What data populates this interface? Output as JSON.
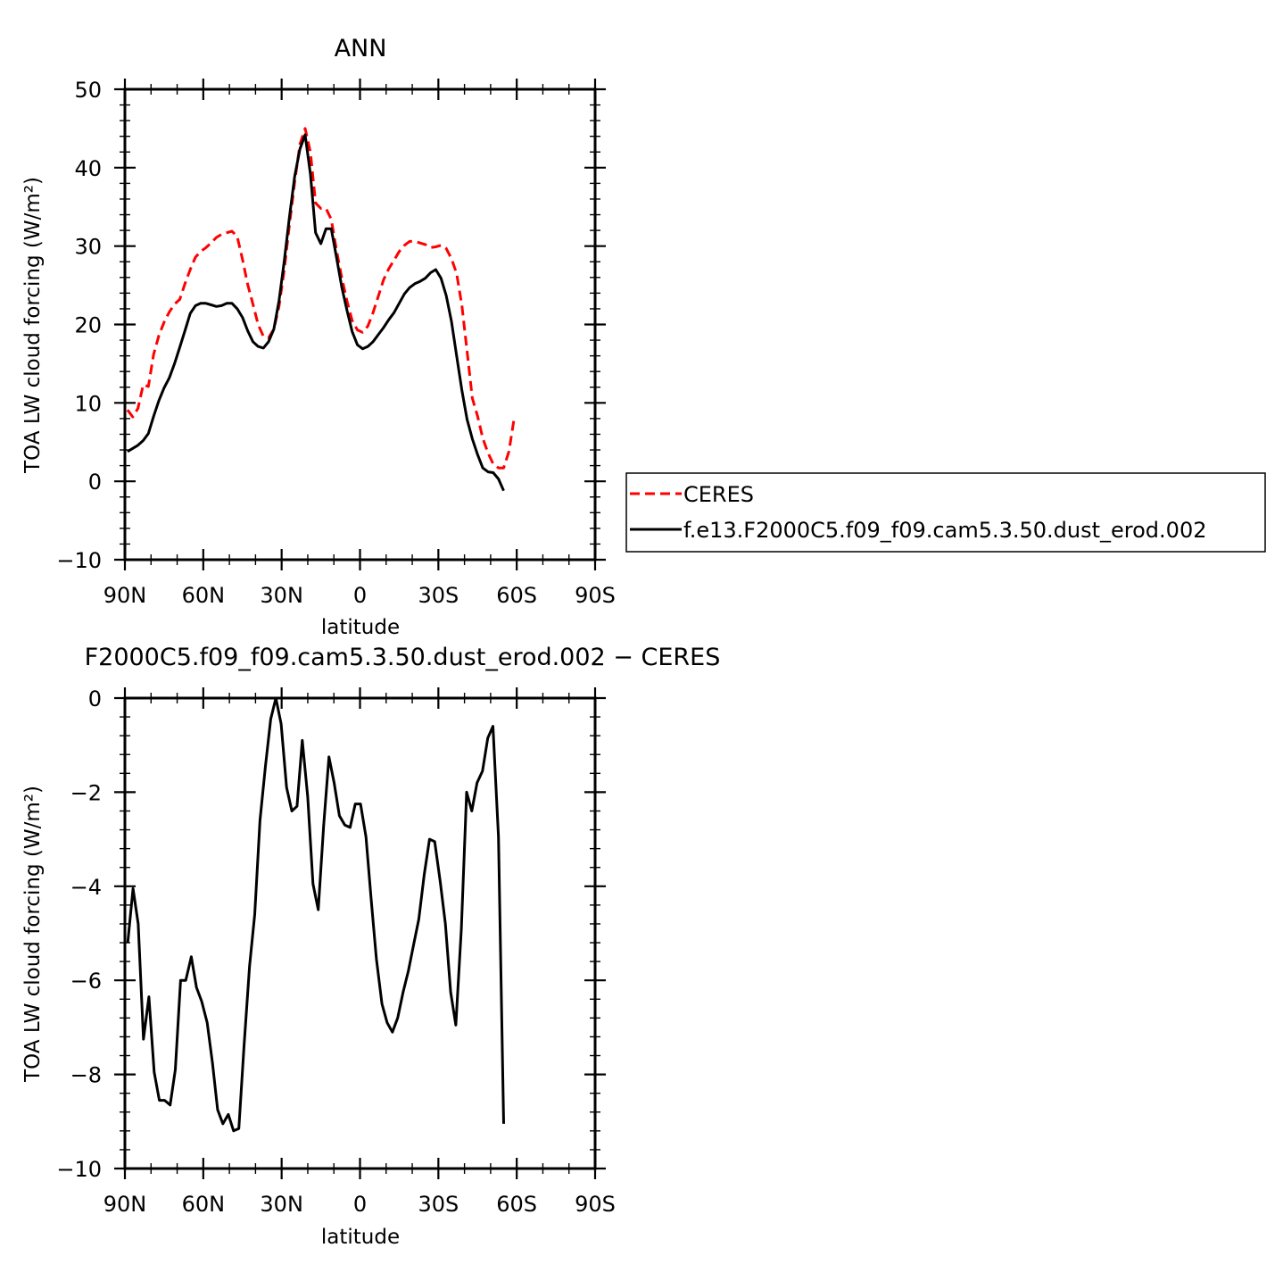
{
  "chart_data": [
    {
      "type": "line",
      "title": "ANN",
      "xlabel": "latitude",
      "ylabel": "TOA LW cloud forcing (W/m²)",
      "xlim": [
        90,
        -90
      ],
      "ylim": [
        -10,
        50
      ],
      "x_ticks": [
        {
          "value": 90,
          "label": "90N"
        },
        {
          "value": 60,
          "label": "60N"
        },
        {
          "value": 30,
          "label": "30N"
        },
        {
          "value": 0,
          "label": "0"
        },
        {
          "value": -30,
          "label": "30S"
        },
        {
          "value": -60,
          "label": "60S"
        },
        {
          "value": -90,
          "label": "90S"
        }
      ],
      "y_ticks": [
        {
          "value": 50,
          "label": "50"
        },
        {
          "value": 40,
          "label": "40"
        },
        {
          "value": 30,
          "label": "30"
        },
        {
          "value": 20,
          "label": "20"
        },
        {
          "value": 10,
          "label": "10"
        },
        {
          "value": 0,
          "label": "0"
        },
        {
          "value": -10,
          "label": "−10"
        }
      ],
      "legend_position": "right, outside plot",
      "series": [
        {
          "name": "CERES",
          "color": "#ff0000",
          "style": "dashed",
          "points": [
            [
              89,
              9.1
            ],
            [
              87,
              8.2
            ],
            [
              85,
              9.3
            ],
            [
              83,
              12.3
            ],
            [
              81,
              12.1
            ],
            [
              79,
              16.2
            ],
            [
              77,
              18.6
            ],
            [
              75,
              20.3
            ],
            [
              73,
              21.6
            ],
            [
              71,
              22.6
            ],
            [
              69,
              23.2
            ],
            [
              67,
              25.2
            ],
            [
              65,
              27.0
            ],
            [
              63,
              28.6
            ],
            [
              61,
              29.3
            ],
            [
              59,
              29.8
            ],
            [
              57,
              30.4
            ],
            [
              55,
              31.1
            ],
            [
              53,
              31.5
            ],
            [
              51,
              31.7
            ],
            [
              49,
              31.9
            ],
            [
              47,
              31.2
            ],
            [
              45,
              28.3
            ],
            [
              43,
              25.1
            ],
            [
              41,
              22.6
            ],
            [
              39,
              20.0
            ],
            [
              37,
              18.5
            ],
            [
              35,
              18.3
            ],
            [
              33,
              19.4
            ],
            [
              31,
              22.3
            ],
            [
              29,
              27.0
            ],
            [
              27,
              32.7
            ],
            [
              25,
              38.2
            ],
            [
              23,
              43.0
            ],
            [
              21,
              45.0
            ],
            [
              19,
              42.0
            ],
            [
              17,
              35.5
            ],
            [
              15,
              34.8
            ],
            [
              13,
              34.8
            ],
            [
              11,
              33.4
            ],
            [
              9,
              29.5
            ],
            [
              7,
              26.0
            ],
            [
              5,
              23.0
            ],
            [
              3,
              20.5
            ],
            [
              1,
              19.3
            ],
            [
              -1,
              19.0
            ],
            [
              -3,
              19.8
            ],
            [
              -5,
              21.5
            ],
            [
              -7,
              23.6
            ],
            [
              -9,
              25.7
            ],
            [
              -11,
              27.1
            ],
            [
              -13,
              28.2
            ],
            [
              -15,
              29.3
            ],
            [
              -17,
              30.1
            ],
            [
              -19,
              30.6
            ],
            [
              -21,
              30.6
            ],
            [
              -23,
              30.4
            ],
            [
              -25,
              30.2
            ],
            [
              -27,
              29.8
            ],
            [
              -29,
              29.9
            ],
            [
              -31,
              30.1
            ],
            [
              -33,
              29.7
            ],
            [
              -35,
              28.4
            ],
            [
              -37,
              26.5
            ],
            [
              -39,
              22.4
            ],
            [
              -41,
              16.6
            ],
            [
              -43,
              10.6
            ],
            [
              -45,
              8.3
            ],
            [
              -47,
              5.5
            ],
            [
              -49,
              3.6
            ],
            [
              -51,
              2.2
            ],
            [
              -53,
              1.7
            ],
            [
              -55,
              1.7
            ],
            [
              -57,
              3.8
            ],
            [
              -59,
              8.0
            ]
          ]
        },
        {
          "name": "f.e13.F2000C5.f09_f09.cam5.3.50.dust_erod.002",
          "color": "#000000",
          "style": "solid",
          "points": [
            [
              89,
              3.8
            ],
            [
              87,
              4.2
            ],
            [
              85,
              4.6
            ],
            [
              83,
              5.2
            ],
            [
              81,
              6.1
            ],
            [
              79,
              8.3
            ],
            [
              77,
              10.3
            ],
            [
              75,
              11.9
            ],
            [
              73,
              13.2
            ],
            [
              71,
              15.0
            ],
            [
              69,
              17.1
            ],
            [
              67,
              19.2
            ],
            [
              65,
              21.4
            ],
            [
              63,
              22.4
            ],
            [
              61,
              22.7
            ],
            [
              59,
              22.7
            ],
            [
              57,
              22.5
            ],
            [
              55,
              22.3
            ],
            [
              53,
              22.4
            ],
            [
              51,
              22.7
            ],
            [
              49,
              22.7
            ],
            [
              47,
              22.0
            ],
            [
              45,
              20.9
            ],
            [
              43,
              19.2
            ],
            [
              41,
              17.8
            ],
            [
              39,
              17.2
            ],
            [
              37,
              17.0
            ],
            [
              35,
              17.8
            ],
            [
              33,
              19.4
            ],
            [
              31,
              23.0
            ],
            [
              29,
              28.1
            ],
            [
              27,
              33.7
            ],
            [
              25,
              38.9
            ],
            [
              23,
              42.4
            ],
            [
              21,
              44.2
            ],
            [
              19,
              39.2
            ],
            [
              17,
              31.7
            ],
            [
              15,
              30.3
            ],
            [
              13,
              32.2
            ],
            [
              11,
              32.2
            ],
            [
              9,
              28.6
            ],
            [
              7,
              24.8
            ],
            [
              5,
              21.8
            ],
            [
              3,
              19.1
            ],
            [
              1,
              17.4
            ],
            [
              -1,
              16.9
            ],
            [
              -3,
              17.2
            ],
            [
              -5,
              17.8
            ],
            [
              -7,
              18.7
            ],
            [
              -9,
              19.6
            ],
            [
              -11,
              20.6
            ],
            [
              -13,
              21.5
            ],
            [
              -15,
              22.7
            ],
            [
              -17,
              23.9
            ],
            [
              -19,
              24.7
            ],
            [
              -21,
              25.2
            ],
            [
              -23,
              25.5
            ],
            [
              -25,
              25.9
            ],
            [
              -27,
              26.6
            ],
            [
              -29,
              27.0
            ],
            [
              -31,
              25.9
            ],
            [
              -33,
              23.7
            ],
            [
              -35,
              20.4
            ],
            [
              -37,
              16.0
            ],
            [
              -39,
              11.6
            ],
            [
              -41,
              7.9
            ],
            [
              -43,
              5.4
            ],
            [
              -45,
              3.4
            ],
            [
              -47,
              1.7
            ],
            [
              -49,
              1.2
            ],
            [
              -51,
              1.1
            ],
            [
              -53,
              0.3
            ],
            [
              -55,
              -1.2
            ]
          ]
        }
      ]
    },
    {
      "type": "line",
      "title": "F2000C5.f09_f09.cam5.3.50.dust_erod.002 − CERES",
      "xlabel": "latitude",
      "ylabel": "TOA LW cloud forcing (W/m²)",
      "xlim": [
        90,
        -90
      ],
      "ylim": [
        -10,
        0
      ],
      "x_ticks": [
        {
          "value": 90,
          "label": "90N"
        },
        {
          "value": 60,
          "label": "60N"
        },
        {
          "value": 30,
          "label": "30N"
        },
        {
          "value": 0,
          "label": "0"
        },
        {
          "value": -30,
          "label": "30S"
        },
        {
          "value": -60,
          "label": "60S"
        },
        {
          "value": -90,
          "label": "90S"
        }
      ],
      "y_ticks": [
        {
          "value": 0,
          "label": "0"
        },
        {
          "value": -2,
          "label": "−2"
        },
        {
          "value": -4,
          "label": "−4"
        },
        {
          "value": -6,
          "label": "−6"
        },
        {
          "value": -8,
          "label": "−8"
        },
        {
          "value": -10,
          "label": "−10"
        }
      ],
      "series": [
        {
          "color": "#000000",
          "style": "solid",
          "points": [
            [
              88.9,
              -5.2
            ],
            [
              86.9,
              -4.05
            ],
            [
              84.9,
              -4.8
            ],
            [
              82.9,
              -7.25
            ],
            [
              80.8,
              -6.35
            ],
            [
              78.8,
              -7.95
            ],
            [
              76.8,
              -8.55
            ],
            [
              74.8,
              -8.55
            ],
            [
              72.7,
              -8.65
            ],
            [
              70.7,
              -7.9
            ],
            [
              68.7,
              -6.0
            ],
            [
              66.7,
              -6.0
            ],
            [
              64.6,
              -5.5
            ],
            [
              62.6,
              -6.15
            ],
            [
              60.6,
              -6.45
            ],
            [
              58.5,
              -6.9
            ],
            [
              56.5,
              -7.75
            ],
            [
              54.5,
              -8.75
            ],
            [
              52.5,
              -9.05
            ],
            [
              50.4,
              -8.85
            ],
            [
              48.4,
              -9.2
            ],
            [
              46.4,
              -9.15
            ],
            [
              44.4,
              -7.4
            ],
            [
              42.3,
              -5.7
            ],
            [
              40.3,
              -4.6
            ],
            [
              38.3,
              -2.6
            ],
            [
              36.2,
              -1.45
            ],
            [
              34.2,
              -0.45
            ],
            [
              32.2,
              0.0
            ],
            [
              30.2,
              -0.55
            ],
            [
              28.1,
              -1.9
            ],
            [
              26.1,
              -2.4
            ],
            [
              24.1,
              -2.3
            ],
            [
              22.1,
              -0.9
            ],
            [
              20.0,
              -2.1
            ],
            [
              18.0,
              -3.95
            ],
            [
              16.0,
              -4.5
            ],
            [
              13.9,
              -2.7
            ],
            [
              11.9,
              -1.25
            ],
            [
              9.9,
              -1.8
            ],
            [
              7.9,
              -2.5
            ],
            [
              5.8,
              -2.7
            ],
            [
              3.8,
              -2.75
            ],
            [
              1.8,
              -2.25
            ],
            [
              -0.2,
              -2.25
            ],
            [
              -2.3,
              -2.95
            ],
            [
              -4.3,
              -4.3
            ],
            [
              -6.3,
              -5.55
            ],
            [
              -8.4,
              -6.5
            ],
            [
              -10.4,
              -6.9
            ],
            [
              -12.4,
              -7.1
            ],
            [
              -14.4,
              -6.8
            ],
            [
              -16.5,
              -6.25
            ],
            [
              -18.5,
              -5.8
            ],
            [
              -20.5,
              -5.25
            ],
            [
              -22.5,
              -4.7
            ],
            [
              -24.6,
              -3.75
            ],
            [
              -26.6,
              -3.0
            ],
            [
              -28.6,
              -3.05
            ],
            [
              -30.7,
              -3.9
            ],
            [
              -32.7,
              -4.8
            ],
            [
              -34.7,
              -6.25
            ],
            [
              -36.7,
              -6.95
            ],
            [
              -38.8,
              -4.9
            ],
            [
              -40.8,
              -2.0
            ],
            [
              -42.8,
              -2.4
            ],
            [
              -44.8,
              -1.8
            ],
            [
              -46.9,
              -1.55
            ],
            [
              -48.9,
              -0.85
            ],
            [
              -50.9,
              -0.6
            ],
            [
              -53.0,
              -2.95
            ],
            [
              -55.0,
              -9.05
            ]
          ]
        }
      ]
    }
  ]
}
